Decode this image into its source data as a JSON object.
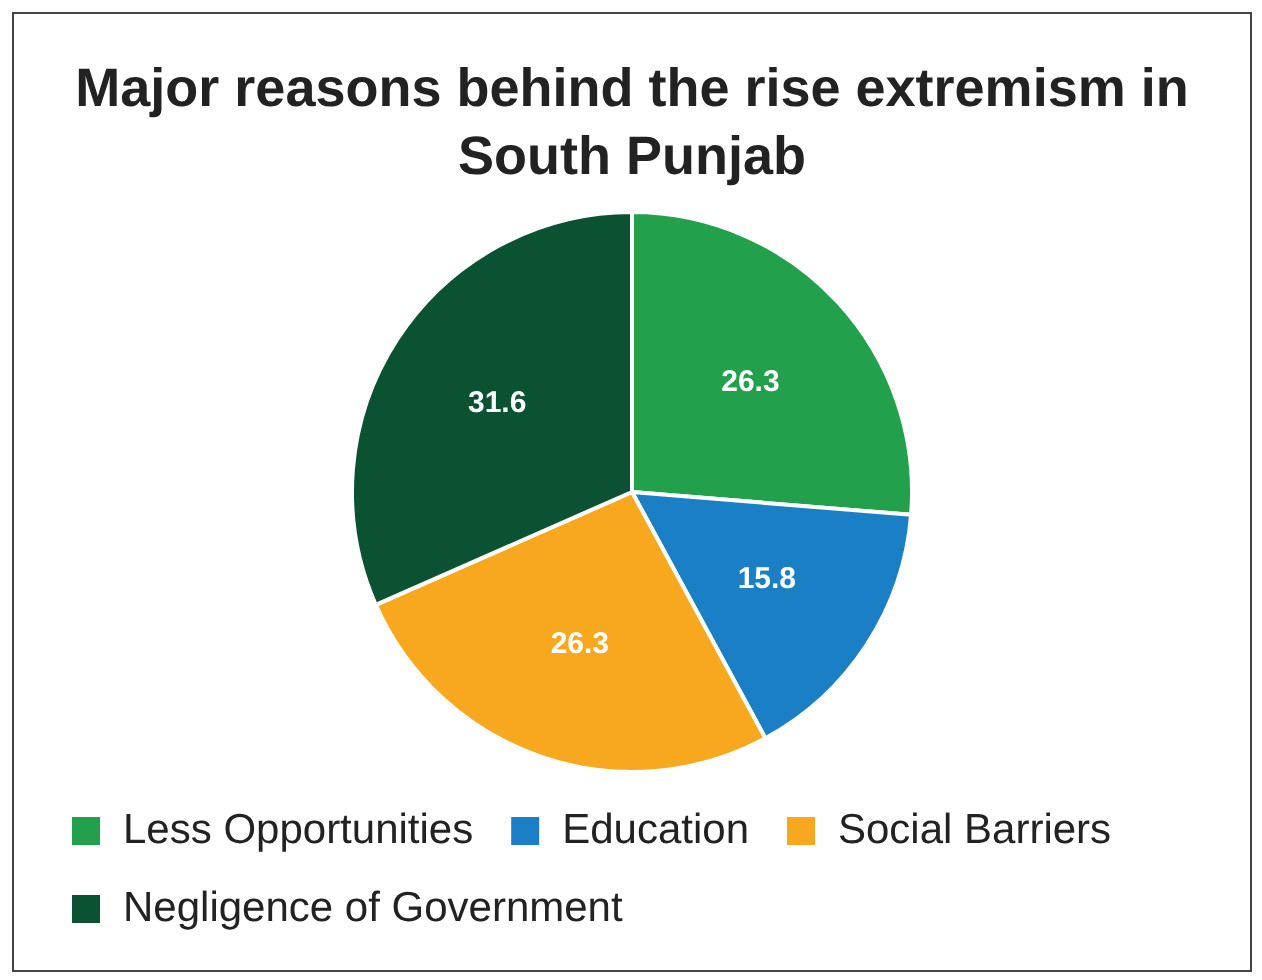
{
  "chart_data": {
    "type": "pie",
    "title": "Major reasons behind the rise extremism in South Punjab",
    "categories": [
      "Less Opportunities",
      "Education",
      "Social Barriers",
      "Negligence of Government"
    ],
    "values": [
      26.3,
      15.8,
      26.3,
      31.6
    ],
    "colors": [
      "#23a04b",
      "#1a7fc4",
      "#f7a81e",
      "#0b5232"
    ],
    "data_labels": true,
    "legend": "bottom"
  }
}
